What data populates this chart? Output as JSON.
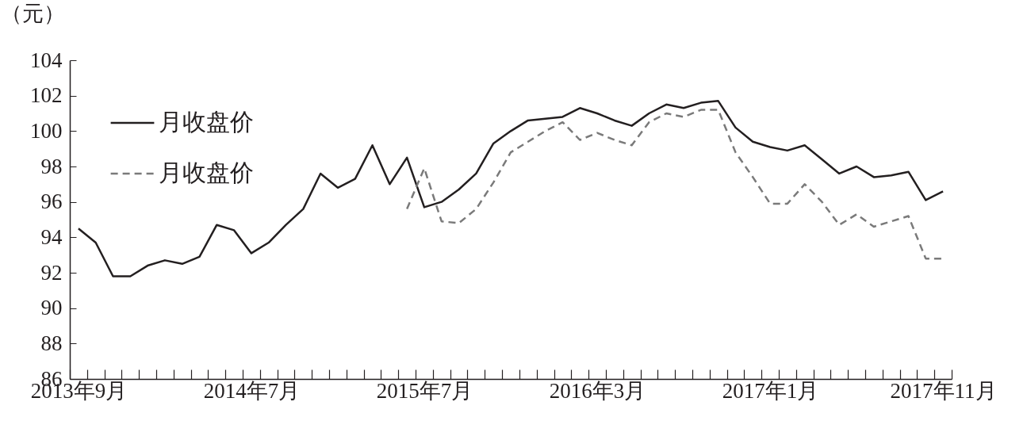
{
  "chart_data": {
    "type": "line",
    "ylabel": "（元）",
    "categories": [
      "2013年9月",
      null,
      null,
      null,
      null,
      null,
      null,
      null,
      null,
      null,
      "2014年7月",
      null,
      null,
      null,
      null,
      null,
      null,
      null,
      null,
      null,
      "2015年7月",
      null,
      null,
      null,
      null,
      null,
      null,
      null,
      null,
      null,
      "2016年3月",
      null,
      null,
      null,
      null,
      null,
      null,
      null,
      null,
      null,
      "2017年1月",
      null,
      null,
      null,
      null,
      null,
      null,
      null,
      null,
      null,
      "2017年11月"
    ],
    "series": [
      {
        "name": "月收盘价",
        "color": "#231f20",
        "line_style": "solid",
        "values": [
          94.5,
          93.7,
          91.8,
          91.8,
          92.4,
          92.7,
          92.5,
          92.9,
          94.7,
          94.4,
          93.1,
          93.7,
          94.7,
          95.6,
          97.6,
          96.8,
          97.3,
          99.2,
          97.0,
          98.5,
          95.7,
          96.0,
          96.7,
          97.6,
          99.3,
          100.0,
          100.6,
          100.7,
          100.8,
          101.3,
          101.0,
          100.6,
          100.3,
          101.0,
          101.5,
          101.3,
          101.6,
          101.7,
          100.2,
          99.4,
          99.1,
          98.9,
          99.2,
          98.4,
          97.6,
          98.0,
          97.4,
          97.5,
          97.7,
          96.1,
          96.6
        ]
      },
      {
        "name": "月收盘价",
        "color": "#7a7a7a",
        "line_style": "dashed",
        "values": [
          null,
          null,
          null,
          null,
          null,
          null,
          null,
          null,
          null,
          null,
          null,
          null,
          null,
          null,
          null,
          null,
          null,
          null,
          null,
          95.6,
          97.9,
          94.9,
          94.8,
          95.6,
          97.1,
          98.8,
          99.4,
          100.0,
          100.5,
          99.5,
          99.9,
          99.5,
          99.2,
          100.5,
          101.0,
          100.8,
          101.2,
          101.2,
          98.8,
          97.4,
          95.9,
          95.9,
          97.0,
          96.0,
          94.7,
          95.3,
          94.6,
          94.9,
          95.2,
          92.8,
          92.8
        ]
      }
    ],
    "ylim": [
      86,
      104
    ],
    "yticks": [
      86,
      88,
      90,
      92,
      94,
      96,
      98,
      100,
      102,
      104
    ],
    "grid": false,
    "legend": "top left"
  }
}
